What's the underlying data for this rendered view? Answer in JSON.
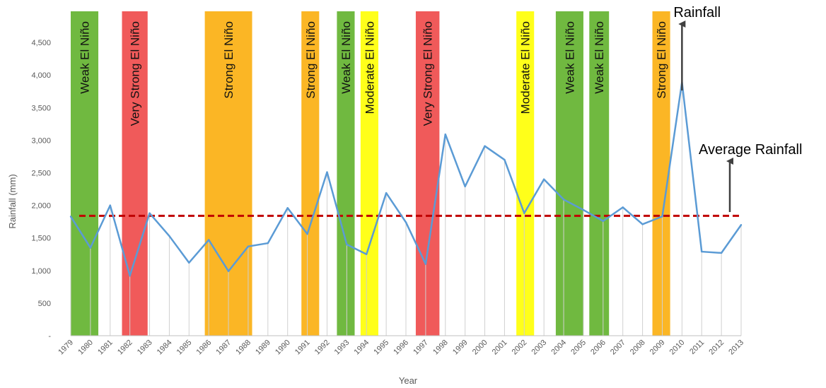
{
  "chart_data": {
    "type": "line",
    "xlabel": "Year",
    "ylabel": "Rainfall (mm)",
    "ylim": [
      0,
      5000
    ],
    "yticks": [
      0,
      500,
      1000,
      1500,
      2000,
      2500,
      3000,
      3500,
      4000,
      4500
    ],
    "ytick_labels": [
      "-",
      "500",
      "1,000",
      "1,500",
      "2,000",
      "2,500",
      "3,000",
      "3,500",
      "4,000",
      "4,500"
    ],
    "x": [
      1979,
      1980,
      1981,
      1982,
      1983,
      1984,
      1985,
      1986,
      1987,
      1988,
      1989,
      1990,
      1991,
      1992,
      1993,
      1994,
      1995,
      1996,
      1997,
      1998,
      1999,
      2000,
      2001,
      2002,
      2003,
      2004,
      2005,
      2006,
      2007,
      2008,
      2009,
      2010,
      2011,
      2012,
      2013
    ],
    "series": [
      {
        "name": "Rainfall",
        "color": "#5b9bd5",
        "values": [
          1830,
          1350,
          2000,
          920,
          1880,
          1530,
          1120,
          1470,
          990,
          1370,
          1420,
          1960,
          1560,
          2510,
          1400,
          1250,
          2190,
          1740,
          1100,
          3090,
          2290,
          2910,
          2700,
          1880,
          2400,
          2090,
          1930,
          1760,
          1970,
          1710,
          1830,
          3890,
          1290,
          1270,
          1700
        ]
      }
    ],
    "average": {
      "value": 1840,
      "color": "#c00000"
    },
    "grid": "vertical",
    "bands": [
      {
        "label": "Weak El Niño",
        "start": 1979,
        "end": 1980.4,
        "color": "#70b940"
      },
      {
        "label": "Very Strong El Niño",
        "start": 1981.6,
        "end": 1982.9,
        "color": "#f05a5a"
      },
      {
        "label": "Strong El Niño",
        "start": 1985.8,
        "end": 1988.2,
        "color": "#fbb625"
      },
      {
        "label": "Strong El Niño",
        "start": 1990.7,
        "end": 1991.6,
        "color": "#fbb625"
      },
      {
        "label": "Weak El Niño",
        "start": 1992.5,
        "end": 1993.4,
        "color": "#70b940"
      },
      {
        "label": "Moderate El Niño",
        "start": 1993.7,
        "end": 1994.6,
        "color": "#ffff1a"
      },
      {
        "label": "Very Strong El Niño",
        "start": 1996.5,
        "end": 1997.7,
        "color": "#f05a5a"
      },
      {
        "label": "Moderate El Niño",
        "start": 2001.6,
        "end": 2002.5,
        "color": "#ffff1a"
      },
      {
        "label": "Weak El Niño",
        "start": 2003.6,
        "end": 2005.0,
        "color": "#70b940"
      },
      {
        "label": "Weak El Niño",
        "start": 2005.3,
        "end": 2006.3,
        "color": "#70b940"
      },
      {
        "label": "Strong El Niño",
        "start": 2008.5,
        "end": 2009.4,
        "color": "#fbb625"
      }
    ],
    "annotations": [
      {
        "text": "Rainfall",
        "arrow_to_year": 2010
      },
      {
        "text": "Average Rainfall",
        "arrow_to_year": 2009.8
      }
    ]
  }
}
